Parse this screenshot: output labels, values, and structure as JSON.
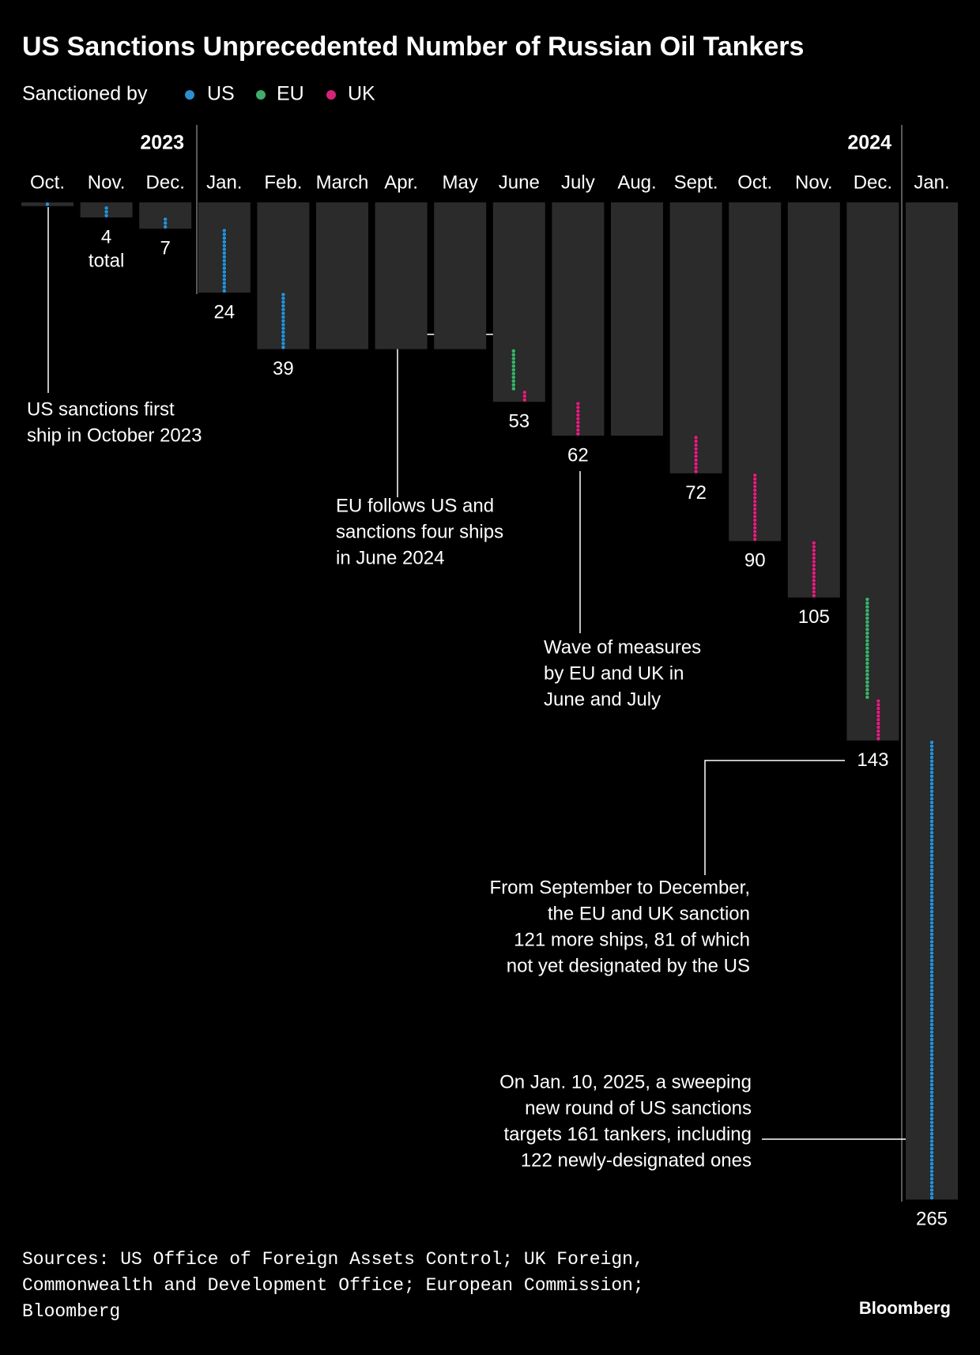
{
  "chart_data": {
    "type": "dot-column",
    "title": "US Sanctions Unprecedented Number of Russian Oil Tankers",
    "legend_title": "Sanctioned by",
    "years": [
      "2023",
      "2024"
    ],
    "categories": [
      "Oct.",
      "Nov.",
      "Dec.",
      "Jan.",
      "Feb.",
      "March",
      "Apr.",
      "May",
      "June",
      "July",
      "Aug.",
      "Sept.",
      "Oct.",
      "Nov.",
      "Dec.",
      "Jan."
    ],
    "totals": [
      1,
      4,
      7,
      24,
      39,
      39,
      39,
      39,
      53,
      62,
      62,
      72,
      90,
      105,
      143,
      265
    ],
    "value_labels": [
      null,
      "4",
      "7",
      "24",
      "39",
      null,
      null,
      null,
      "53",
      "62",
      null,
      "72",
      "90",
      "105",
      "143",
      "265"
    ],
    "total_note": "total",
    "series": [
      {
        "name": "US",
        "color": "#2b8fd0",
        "values": [
          1,
          3,
          3,
          17,
          15,
          0,
          0,
          0,
          0,
          0,
          0,
          0,
          0,
          0,
          0,
          122
        ]
      },
      {
        "name": "EU",
        "color": "#3fae6a",
        "values": [
          0,
          0,
          0,
          0,
          0,
          0,
          0,
          0,
          11,
          0,
          0,
          0,
          0,
          0,
          27,
          0
        ]
      },
      {
        "name": "UK",
        "color": "#d4247a",
        "values": [
          0,
          0,
          0,
          0,
          0,
          0,
          0,
          0,
          3,
          9,
          0,
          10,
          18,
          15,
          11,
          0
        ]
      }
    ],
    "annotations": [
      [
        "US sanctions first",
        "ship in October 2023"
      ],
      [
        "EU follows US and",
        "sanctions four ships",
        "in June 2024"
      ],
      [
        "Wave of measures",
        "by EU and UK in",
        "June and July"
      ],
      [
        "From September to December,",
        "the EU and UK sanction",
        "121 more ships, 81 of which",
        "not yet designated by the US"
      ],
      [
        "On Jan. 10, 2025, a sweeping",
        "new round of US sanctions",
        "targets 161 tankers, including",
        "122 newly-designated ones"
      ]
    ],
    "source": [
      "Sources: US Office of Foreign Assets Control; UK Foreign,",
      "Commonwealth and Development Office; European Commission;",
      "Bloomberg"
    ],
    "brand": "Bloomberg"
  }
}
